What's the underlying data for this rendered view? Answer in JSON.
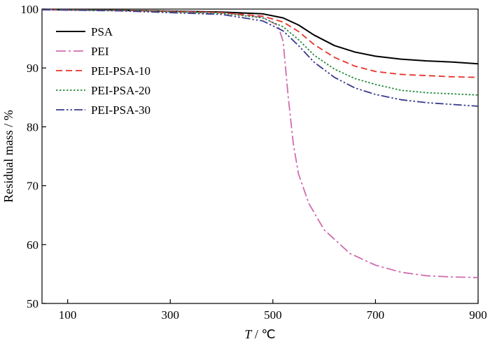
{
  "chart_data": {
    "type": "line",
    "title": "",
    "xlabel_var": "T",
    "xlabel_unit": " / ℃",
    "ylabel": "Residual mass / %",
    "xlim": [
      50,
      900
    ],
    "ylim": [
      50,
      100
    ],
    "xticks": [
      100,
      300,
      500,
      700,
      900
    ],
    "yticks": [
      50,
      60,
      70,
      80,
      90,
      100
    ],
    "grid": false,
    "legend_position": "top-left",
    "series": [
      {
        "name": "PSA",
        "color": "#000000",
        "dash": "solid",
        "x": [
          50,
          200,
          400,
          480,
          520,
          550,
          580,
          620,
          660,
          700,
          750,
          800,
          850,
          900
        ],
        "y": [
          99.9,
          99.8,
          99.5,
          99.2,
          98.5,
          97.3,
          95.6,
          93.8,
          92.7,
          92.0,
          91.5,
          91.2,
          91.0,
          90.7
        ]
      },
      {
        "name": "PEI",
        "color": "#d06cb0",
        "dash": "dashdot",
        "x": [
          50,
          200,
          400,
          480,
          510,
          520,
          530,
          540,
          550,
          570,
          600,
          650,
          700,
          750,
          800,
          850,
          900
        ],
        "y": [
          99.9,
          99.8,
          99.4,
          98.6,
          97.2,
          94.5,
          85.0,
          77.0,
          72.0,
          67.0,
          62.5,
          58.5,
          56.5,
          55.3,
          54.7,
          54.5,
          54.4
        ]
      },
      {
        "name": "PEI-PSA-10",
        "color": "#e8312a",
        "dash": "dashed",
        "x": [
          50,
          200,
          400,
          480,
          520,
          550,
          580,
          620,
          660,
          700,
          750,
          800,
          850,
          900
        ],
        "y": [
          99.9,
          99.8,
          99.4,
          98.8,
          97.8,
          96.2,
          94.0,
          91.8,
          90.3,
          89.4,
          88.9,
          88.7,
          88.5,
          88.4
        ]
      },
      {
        "name": "PEI-PSA-20",
        "color": "#1e8c3a",
        "dash": "dotted",
        "x": [
          50,
          200,
          400,
          480,
          520,
          550,
          580,
          620,
          660,
          700,
          750,
          800,
          850,
          900
        ],
        "y": [
          99.9,
          99.8,
          99.3,
          98.5,
          97.0,
          94.8,
          92.2,
          89.8,
          88.2,
          87.2,
          86.2,
          85.8,
          85.6,
          85.4
        ]
      },
      {
        "name": "PEI-PSA-30",
        "color": "#3a3a8c",
        "dash": "dashdotdot",
        "x": [
          50,
          200,
          400,
          480,
          520,
          550,
          580,
          620,
          660,
          700,
          750,
          800,
          850,
          900
        ],
        "y": [
          99.9,
          99.7,
          99.1,
          98.0,
          96.3,
          93.8,
          91.0,
          88.4,
          86.6,
          85.5,
          84.6,
          84.1,
          83.8,
          83.5
        ]
      }
    ]
  }
}
